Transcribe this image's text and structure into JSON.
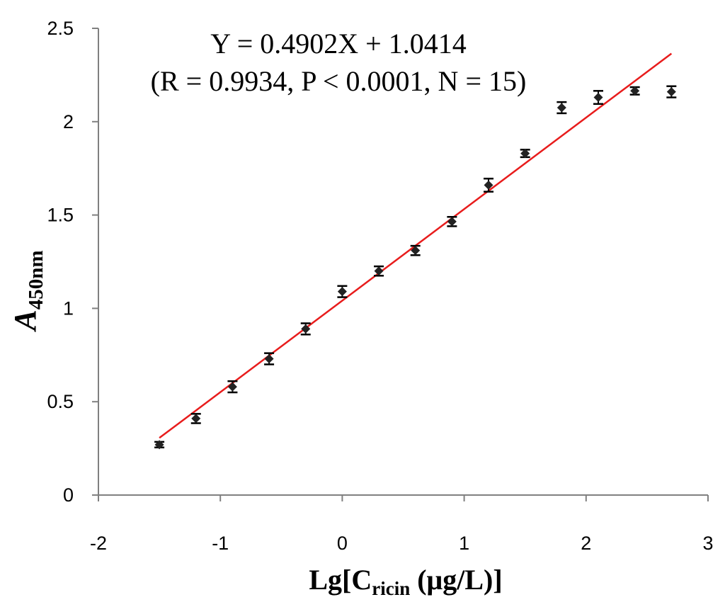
{
  "chart_data": {
    "type": "scatter",
    "xlabel_main": "Lg[C",
    "xlabel_sub": "ricin",
    "xlabel_rest": " (μg/L)]",
    "ylabel_main": "A",
    "ylabel_sub": "450nm",
    "equation_line1": "Y = 0.4902X + 1.0414",
    "equation_line2": "(R = 0.9934, P < 0.0001, N = 15)",
    "xlim": [
      -2,
      3
    ],
    "ylim": [
      0,
      2.5
    ],
    "x_ticks": [
      "-2",
      "-1",
      "0",
      "1",
      "2",
      "3"
    ],
    "y_ticks": [
      "0",
      "0.5",
      "1",
      "1.5",
      "2",
      "2.5"
    ],
    "grid": false,
    "points": [
      {
        "x": -1.5,
        "y": 0.27,
        "err": 0.015
      },
      {
        "x": -1.2,
        "y": 0.41,
        "err": 0.025
      },
      {
        "x": -0.9,
        "y": 0.58,
        "err": 0.03
      },
      {
        "x": -0.6,
        "y": 0.73,
        "err": 0.03
      },
      {
        "x": -0.3,
        "y": 0.89,
        "err": 0.03
      },
      {
        "x": 0.0,
        "y": 1.09,
        "err": 0.03
      },
      {
        "x": 0.3,
        "y": 1.2,
        "err": 0.025
      },
      {
        "x": 0.6,
        "y": 1.31,
        "err": 0.025
      },
      {
        "x": 0.9,
        "y": 1.465,
        "err": 0.025
      },
      {
        "x": 1.2,
        "y": 1.66,
        "err": 0.035
      },
      {
        "x": 1.5,
        "y": 1.83,
        "err": 0.02
      },
      {
        "x": 1.8,
        "y": 2.075,
        "err": 0.03
      },
      {
        "x": 2.1,
        "y": 2.13,
        "err": 0.035
      },
      {
        "x": 2.4,
        "y": 2.165,
        "err": 0.02
      },
      {
        "x": 2.7,
        "y": 2.16,
        "err": 0.03
      }
    ],
    "fit": {
      "slope": 0.4902,
      "intercept": 1.0414,
      "x_start": -1.5,
      "x_end": 2.7
    },
    "colors": {
      "points": "#222222",
      "fit_line": "#e81c1c",
      "axes": "#808080"
    }
  }
}
